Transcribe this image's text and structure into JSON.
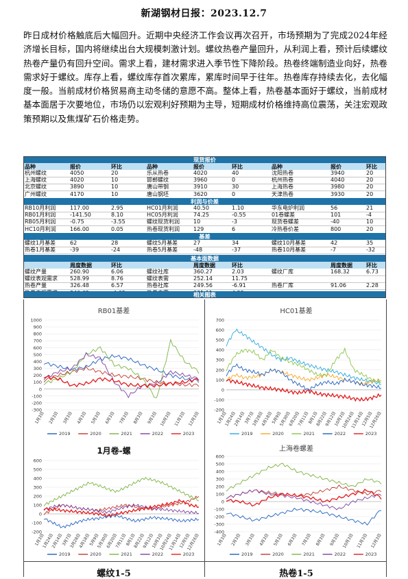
{
  "title": "新湖钢材日报：2023.12.7",
  "summary": "昨日成材价格触底后大幅回升。近期中央经济工作会议再次召开，市场预期为了完成2024年经济增长目标，国内将继续出台大规模刺激计划。螺纹热卷产量回升，从利润上看，预计后续螺纹热卷产量仍有回升空间。需求上看，建材需求进入季节性下降阶段。热卷终端制造业向好，热卷需求好于螺纹。库存上看，螺纹库存首次累库，累库时间早于往年。热卷库存持续去化，去化幅度一般。当前成材价格贸易商主动冬储的意愿不高。整体上看，热卷基本面好于螺纹，当前成材基本面居于次要地位，市场仍以宏观利好预期为主导，短期成材价格维持高位震荡，关注宏观政策预期以及焦煤矿石价格走势。",
  "sections": {
    "spot": "现货报价",
    "profit": "利润与价差",
    "basis": "基差",
    "fundamental": "基本面数据",
    "charts": "相关图表"
  },
  "spot_headers": [
    "品种",
    "报价",
    "环比",
    "品种",
    "报价",
    "环比",
    "品种",
    "报价",
    "环比"
  ],
  "spot_rows": [
    [
      "杭州螺纹",
      "4050",
      "20",
      "乐从热卷",
      "4020",
      "40",
      "沈阳热卷",
      "3940",
      "20"
    ],
    [
      "上海螺纹",
      "4020",
      "10",
      "邯郸螺纹",
      "3960",
      "0",
      "杭州热卷",
      "4040",
      "20"
    ],
    [
      "北京螺纹",
      "3890",
      "10",
      "唐山带钢",
      "3910",
      "30",
      "上海热卷",
      "3980",
      "20"
    ],
    [
      "广州螺纹",
      "4170",
      "10",
      "唐山钢坯",
      "3620",
      "0",
      "天津热卷",
      "3930",
      "20"
    ]
  ],
  "profit_rows": [
    [
      "RB10月利润",
      "117.00",
      "2.95",
      "HC01月利润",
      "40.50",
      "1.10",
      "华东电炉利润",
      "56",
      "21"
    ],
    [
      "RB01月利润",
      "-141.50",
      "8.10",
      "HC05月利润",
      "74.25",
      "-0.55",
      "01卷螺差",
      "101",
      "-4"
    ],
    [
      "RB05月利润",
      "-0.75",
      "-3.55",
      "螺纹现货利润",
      "10",
      "-3",
      "现货卷螺差",
      "-40",
      "10"
    ],
    [
      "HC10月利润",
      "166.00",
      "0.05",
      "热卷现货利润",
      "129",
      "6",
      "冷热卷价差",
      "800",
      "20"
    ]
  ],
  "basis_rows": [
    [
      "螺纹1月基差",
      "62",
      "28",
      "螺纹5月基差",
      "27",
      "34",
      "螺纹10月基差",
      "42",
      "35"
    ],
    [
      "热卷1月基差",
      "-39",
      "-24",
      "热卷5月基差",
      "-48",
      "-37",
      "热卷10月基差",
      "-7",
      "-32"
    ]
  ],
  "fund_headers": [
    "",
    "周度数据",
    "环比",
    "",
    "周度数据",
    "环比",
    "",
    "周度数据",
    "环比"
  ],
  "fund_rows": [
    [
      "螺纹产量",
      "260.90",
      "6.06",
      "螺纹社库",
      "360.27",
      "2.03",
      "螺纹厂库",
      "168.32",
      "6.73"
    ],
    [
      "螺纹表观需求",
      "528.99",
      "8.76",
      "螺纹表需",
      "252.14",
      "11.75",
      "",
      "",
      ""
    ],
    [
      "热卷产量",
      "326.48",
      "6.57",
      "热卷社库",
      "249.56",
      "-6.91",
      "热卷厂库",
      "91.06",
      "2.28"
    ],
    [
      "热卷表观需求",
      "340.62",
      "-4.63",
      "热卷表需",
      "331.11",
      "4.22",
      "",
      "",
      ""
    ]
  ],
  "chart_data": [
    {
      "type": "line",
      "title": "RB01基差",
      "x": [
        "1月3日",
        "2月3日",
        "3月3日",
        "4月3日",
        "5月3日",
        "6月3日",
        "7月3日",
        "8月3日",
        "9月3日",
        "10月3日",
        "11月3日",
        "12月3日"
      ],
      "ylim": [
        -300,
        1000
      ],
      "yticks": [
        -300,
        -200,
        -100,
        0,
        100,
        200,
        300,
        400,
        500,
        600,
        700,
        800,
        900,
        1000
      ],
      "series": [
        {
          "name": "2019",
          "color": "#1f5fbf",
          "values": [
            380,
            330,
            280,
            320,
            430,
            480,
            440,
            350,
            280,
            200,
            150,
            120
          ]
        },
        {
          "name": "2020",
          "color": "#c0392b",
          "values": [
            120,
            200,
            250,
            300,
            250,
            200,
            180,
            150,
            100,
            80,
            60,
            60
          ]
        },
        {
          "name": "2021",
          "color": "#7cb342",
          "values": [
            80,
            150,
            250,
            500,
            600,
            350,
            300,
            150,
            -150,
            700,
            400,
            250
          ]
        },
        {
          "name": "2022",
          "color": "#7b3fa0",
          "values": [
            150,
            250,
            300,
            500,
            450,
            100,
            -100,
            50,
            80,
            250,
            200,
            150
          ]
        },
        {
          "name": "2023",
          "color": "#e31a1c",
          "values": [
            180,
            150,
            50,
            80,
            150,
            120,
            60,
            50,
            50,
            80,
            100,
            150
          ]
        }
      ]
    },
    {
      "type": "line",
      "title": "HC01基差",
      "x": [
        "1月3日",
        "1月24日",
        "2月14日",
        "3月7日",
        "3月28日",
        "4月18日",
        "5月9日",
        "5月30日",
        "6月20日",
        "7月11日",
        "8月1日",
        "8月22日",
        "9月12日",
        "10月3日",
        "10月24日",
        "11月14日",
        "12月5日",
        "12月26日"
      ],
      "ylim": [
        -200,
        700
      ],
      "yticks": [
        -200,
        -100,
        0,
        100,
        200,
        300,
        400,
        500,
        600,
        700
      ],
      "series": [
        {
          "name": "2019",
          "color": "#29a8e0",
          "values": [
            450,
            600,
            550,
            480,
            420,
            350,
            300,
            320,
            280,
            250,
            220,
            200,
            180,
            150,
            120,
            100,
            80,
            60
          ]
        },
        {
          "name": "2020",
          "color": "#f5a623",
          "values": [
            100,
            150,
            120,
            130,
            150,
            200,
            180,
            150,
            120,
            100,
            120,
            150,
            130,
            100,
            80,
            60,
            80,
            100
          ]
        },
        {
          "name": "2021",
          "color": "#8bc34a",
          "values": [
            200,
            350,
            400,
            380,
            300,
            400,
            320,
            280,
            250,
            200,
            150,
            150,
            300,
            400,
            200,
            150,
            100,
            80
          ]
        },
        {
          "name": "2022",
          "color": "#1f5fbf",
          "values": [
            150,
            250,
            200,
            180,
            150,
            200,
            180,
            100,
            50,
            0,
            50,
            80,
            60,
            100,
            80,
            50,
            40,
            20
          ]
        },
        {
          "name": "2023",
          "color": "#e31a1c",
          "values": [
            100,
            80,
            60,
            40,
            20,
            10,
            0,
            -20,
            -30,
            -10,
            -40,
            -50,
            -60,
            -70,
            -90,
            -100,
            -80,
            -50
          ]
        }
      ]
    },
    {
      "type": "line",
      "title": "1月卷-螺",
      "x": [
        "1月3日",
        "1月24日",
        "2月14日",
        "3月7日",
        "3月28日",
        "4月18日",
        "5月9日",
        "5月30日",
        "6月20日",
        "7月11日",
        "8月1日",
        "8月22日",
        "9月12日",
        "10月3日",
        "10月24日",
        "11月14日",
        "12月5日",
        "12月26日"
      ],
      "ylim": [
        -200,
        600
      ],
      "yticks": [
        -200,
        -100,
        0,
        100,
        200,
        300,
        400,
        500,
        600
      ],
      "series": [
        {
          "name": "2019",
          "color": "#1f5fbf",
          "values": [
            -50,
            -100,
            -150,
            -120,
            -80,
            -60,
            -50,
            -30,
            -20,
            -50,
            -80,
            -60,
            -40,
            -50,
            -60,
            -80,
            -70,
            -60
          ]
        },
        {
          "name": "2020",
          "color": "#c0392b",
          "values": [
            0,
            50,
            100,
            80,
            60,
            50,
            40,
            60,
            80,
            100,
            80,
            60,
            50,
            80,
            100,
            120,
            150,
            200
          ]
        },
        {
          "name": "2021",
          "color": "#7cb342",
          "values": [
            100,
            150,
            200,
            250,
            300,
            350,
            320,
            280,
            250,
            300,
            350,
            400,
            380,
            350,
            300,
            250,
            200,
            150
          ]
        },
        {
          "name": "2022",
          "color": "#7b3fa0",
          "values": [
            50,
            80,
            100,
            80,
            60,
            50,
            30,
            20,
            50,
            80,
            100,
            80,
            60,
            50,
            40,
            30,
            20,
            10
          ]
        },
        {
          "name": "2023",
          "color": "#e31a1c",
          "values": [
            60,
            50,
            40,
            30,
            20,
            10,
            0,
            -20,
            0,
            20,
            40,
            60,
            80,
            100,
            120,
            150,
            100,
            80
          ]
        }
      ]
    },
    {
      "type": "line",
      "title": "上海卷螺差",
      "x": [
        "1月3日",
        "2月3日",
        "3月3日",
        "4月3日",
        "5月3日",
        "6月3日",
        "7月3日",
        "8月3日",
        "9月3日",
        "10月3日",
        "11月3日",
        "12月3日"
      ],
      "ylim": [
        -400,
        600
      ],
      "yticks": [
        -400,
        -300,
        -200,
        -100,
        0,
        100,
        200,
        300,
        400,
        500,
        600
      ],
      "series": [
        {
          "name": "2019",
          "color": "#1f5fbf",
          "values": [
            -150,
            -200,
            -250,
            -200,
            -150,
            -100,
            -120,
            -150,
            -200,
            -250,
            -300,
            -100
          ]
        },
        {
          "name": "2020",
          "color": "#c0392b",
          "values": [
            50,
            100,
            150,
            120,
            100,
            80,
            100,
            150,
            200,
            150,
            100,
            150
          ]
        },
        {
          "name": "2021",
          "color": "#7cb342",
          "values": [
            150,
            250,
            350,
            450,
            500,
            400,
            350,
            300,
            250,
            200,
            300,
            250
          ]
        },
        {
          "name": "2022",
          "color": "#7b3fa0",
          "values": [
            50,
            100,
            150,
            100,
            80,
            50,
            0,
            -50,
            -100,
            0,
            50,
            100
          ]
        },
        {
          "name": "2023",
          "color": "#e31a1c",
          "values": [
            20,
            0,
            -50,
            50,
            100,
            80,
            50,
            0,
            50,
            100,
            150,
            50
          ]
        }
      ]
    }
  ],
  "footer_left": "螺纹1-5",
  "footer_right": "热卷1-5"
}
